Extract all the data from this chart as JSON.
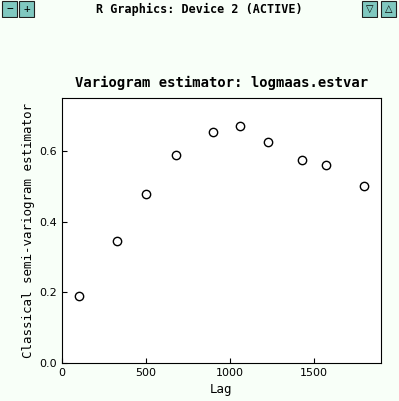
{
  "title": "Variogram estimator: logmaas.estvar",
  "xlabel": "Lag",
  "ylabel": "Classical semi-variogram estimator",
  "x": [
    100,
    330,
    500,
    680,
    900,
    1060,
    1230,
    1430,
    1570,
    1800
  ],
  "y": [
    0.19,
    0.345,
    0.48,
    0.59,
    0.655,
    0.67,
    0.625,
    0.575,
    0.56,
    0.5
  ],
  "xlim": [
    0,
    1900
  ],
  "ylim": [
    0.0,
    0.75
  ],
  "xticks": [
    0,
    500,
    1000,
    1500
  ],
  "yticks": [
    0.0,
    0.2,
    0.4,
    0.6
  ],
  "window_title": "R Graphics: Device 2 (ACTIVE)",
  "bg_outer": "#f0f8f0",
  "bg_titlebar": "#40a8a0",
  "bg_plot": "#f8fff8",
  "bg_inner": "#ffffff",
  "teal_border": "#30b8b0",
  "marker_size": 6,
  "marker_color": "none",
  "marker_edge_color": "#000000",
  "marker_edge_width": 1.0,
  "title_fontsize": 10,
  "axis_label_fontsize": 9,
  "tick_fontsize": 8
}
